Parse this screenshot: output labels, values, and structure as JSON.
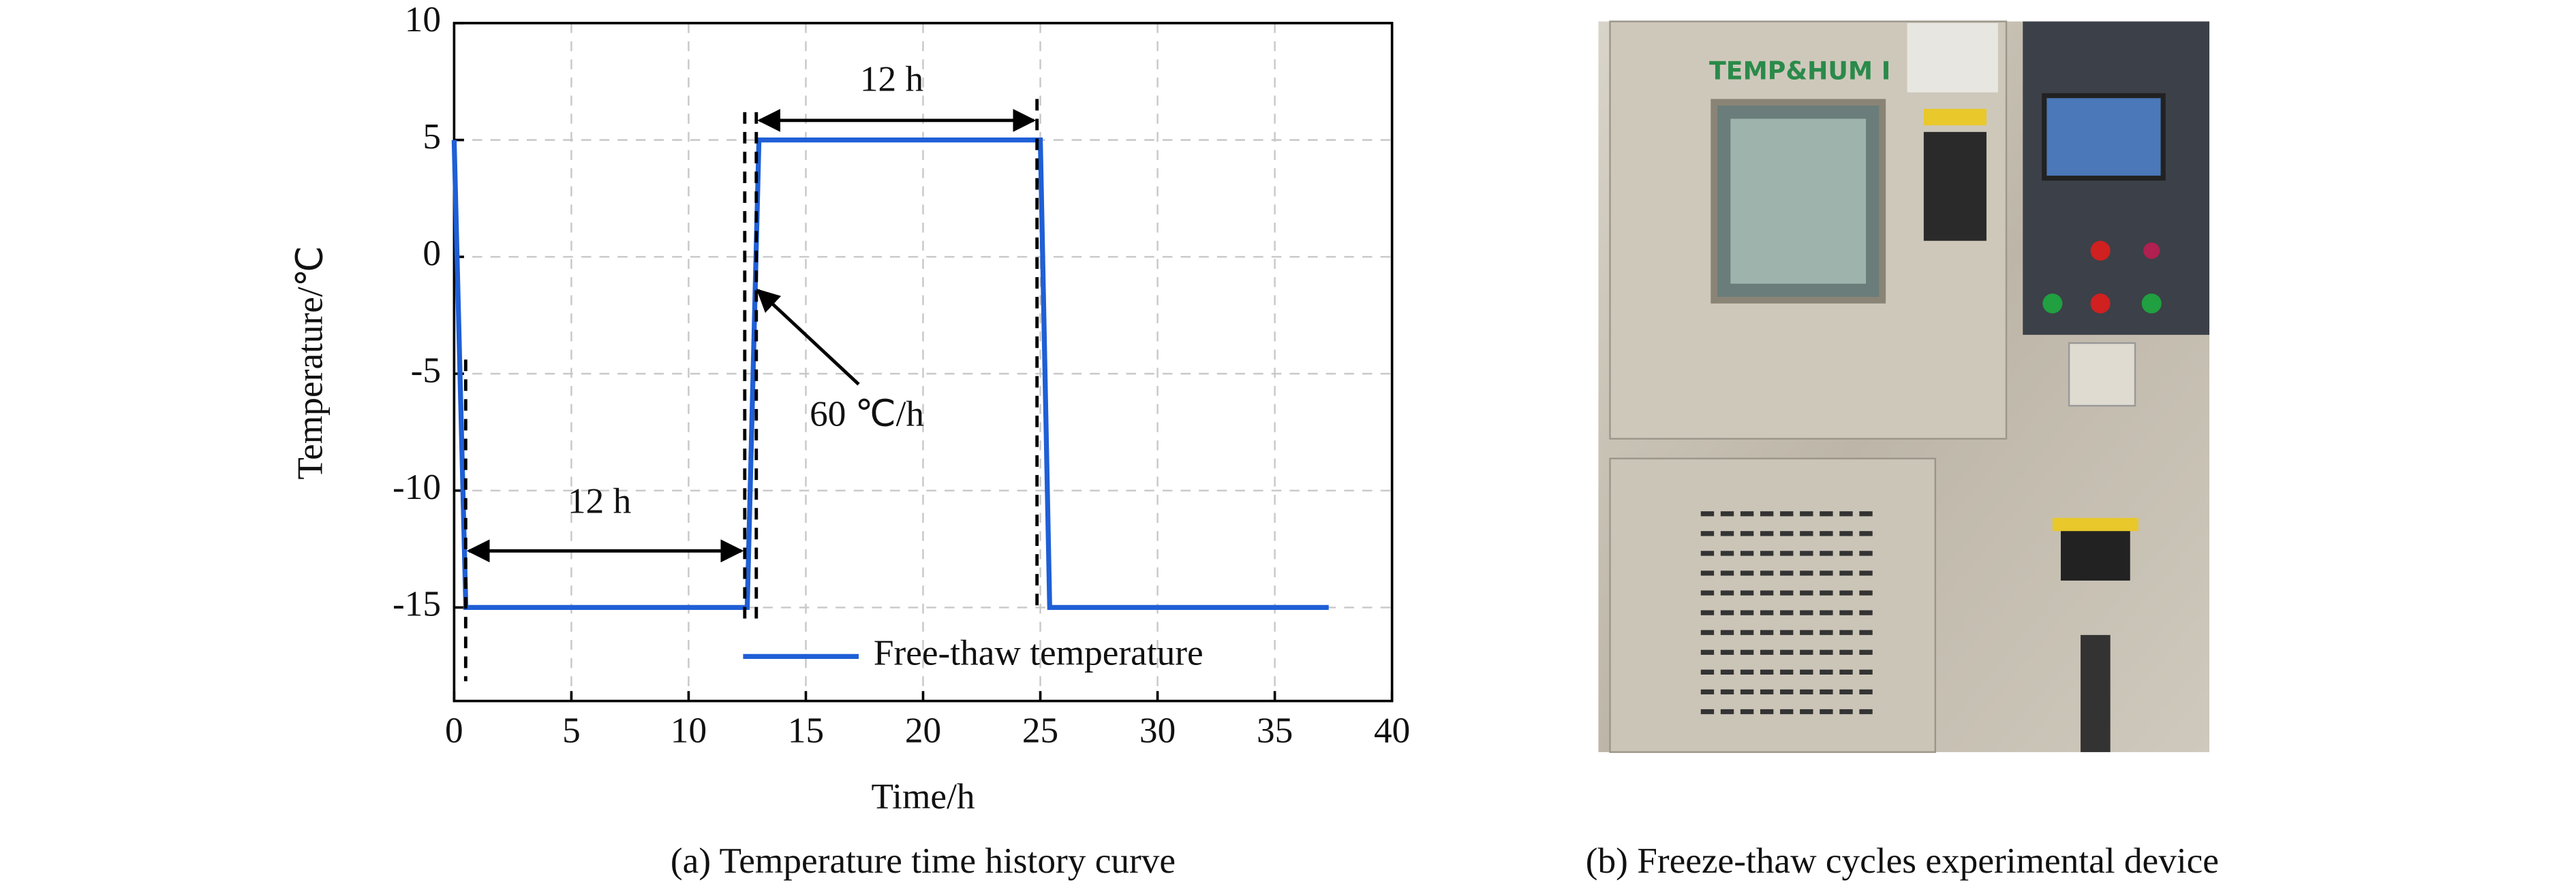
{
  "chart_data": {
    "type": "line",
    "x_label": "Time/h",
    "y_label": "Temperature/℃",
    "caption": "(a) Temperature time history curve",
    "x": [
      0,
      0.5,
      12.5,
      13,
      25,
      25.4,
      37.3
    ],
    "series": [
      {
        "name": "Free-thaw temperature",
        "color": "#1f5fd6",
        "values": [
          5,
          -15,
          -15,
          5,
          5,
          -15,
          -15
        ]
      }
    ],
    "xlim": [
      0,
      40
    ],
    "ylim": [
      -19,
      10
    ],
    "xticks": [
      0,
      5,
      10,
      15,
      20,
      25,
      30,
      35,
      40
    ],
    "yticks": [
      -15,
      -10,
      -5,
      0,
      5,
      10
    ],
    "grid": true,
    "legend": "lower right",
    "annotations": [
      "12 h",
      "12 h",
      "60 ℃/h"
    ]
  },
  "photo": {
    "caption": "(b) Freeze-thaw cycles experimental device",
    "panel_label": "TEMP&HUM I"
  }
}
